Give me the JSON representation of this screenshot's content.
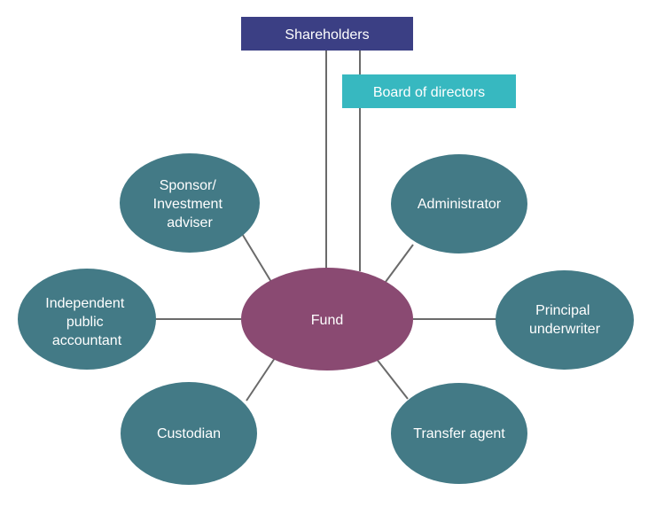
{
  "colors": {
    "satellite": "#437a86",
    "fund": "#8a4a72",
    "shareholders_box": "#3b3f84",
    "board_box": "#37b8c0",
    "connector": "#6a6a6a",
    "text": "#ffffff"
  },
  "header_boxes": {
    "shareholders": "Shareholders",
    "board": "Board of directors"
  },
  "center": {
    "label": "Fund"
  },
  "satellites": {
    "sponsor": [
      "Sponsor/",
      "Investment",
      "adviser"
    ],
    "administrator": [
      "Administrator"
    ],
    "accountant": [
      "Independent",
      "public",
      "accountant"
    ],
    "underwriter": [
      "Principal",
      "underwriter"
    ],
    "custodian": [
      "Custodian"
    ],
    "transfer_agent": [
      "Transfer agent"
    ]
  }
}
